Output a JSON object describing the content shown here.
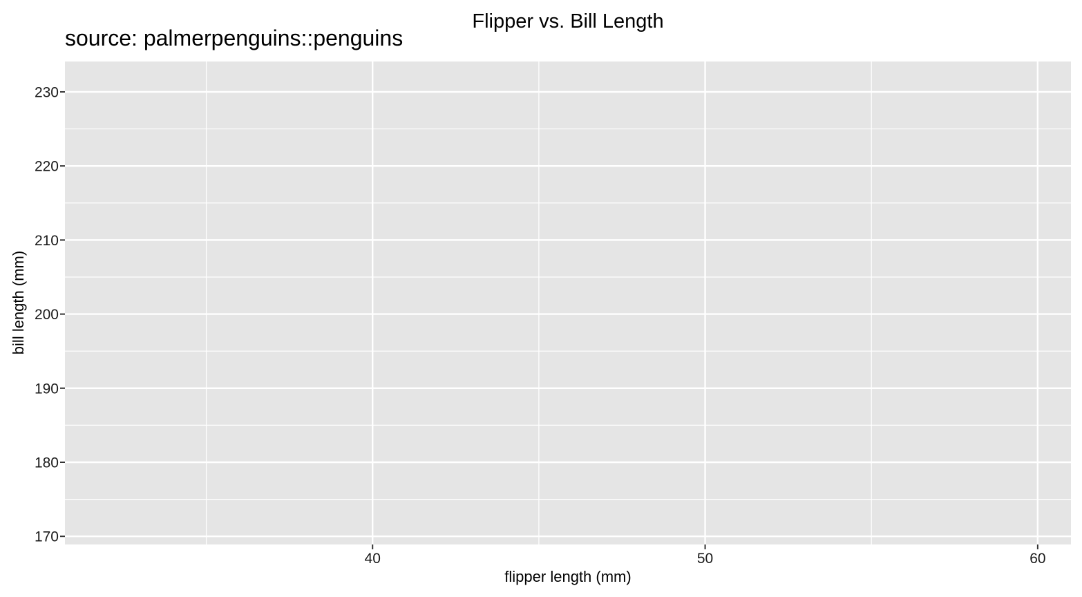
{
  "chart_data": {
    "type": "scatter",
    "title": "Flipper vs. Bill Length",
    "subtitle": "source: palmerpenguins::penguins",
    "xlabel": "flipper length (mm)",
    "ylabel": "bill length (mm)",
    "xlim": [
      30.75,
      61
    ],
    "ylim": [
      168.9,
      234.1
    ],
    "x_ticks": [
      40,
      50,
      60
    ],
    "x_minor_ticks": [
      35,
      45,
      55
    ],
    "y_ticks": [
      170,
      180,
      190,
      200,
      210,
      220,
      230
    ],
    "y_minor_ticks": [
      175,
      185,
      195,
      205,
      215,
      225
    ],
    "points": [],
    "grid": true,
    "panel_color": "#e5e5e5",
    "grid_color": "#ffffff"
  }
}
